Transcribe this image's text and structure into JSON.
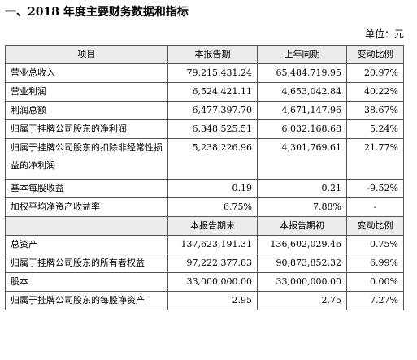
{
  "heading": "一、2018 年度主要财务数据和指标",
  "unit": "单位：元",
  "table1": {
    "headers": [
      "项目",
      "本报告期",
      "上年同期",
      "变动比例"
    ],
    "rows": [
      [
        "营业总收入",
        "79,215,431.24",
        "65,484,719.95",
        "20.97%"
      ],
      [
        "营业利润",
        "6,524,421.11",
        "4,653,042.84",
        "40.22%"
      ],
      [
        "利润总额",
        "6,477,397.70",
        "4,671,147.96",
        "38.67%"
      ],
      [
        "归属于挂牌公司股东的净利润",
        "6,348,525.51",
        "6,032,168.68",
        "5.24%"
      ],
      [
        "归属于挂牌公司股东的扣除非经常性损益的净利润",
        "5,238,226.96",
        "4,301,769.61",
        "21.77%"
      ],
      [
        "基本每股收益",
        "0.19",
        "0.21",
        "-9.52%"
      ],
      [
        "加权平均净资产收益率",
        "6.75%",
        "7.88%",
        "-"
      ]
    ]
  },
  "table2": {
    "headers": [
      "",
      "本报告期末",
      "本报告期初",
      "变动比例"
    ],
    "rows": [
      [
        "总资产",
        "137,623,191.31",
        "136,602,029.46",
        "0.75%"
      ],
      [
        "归属于挂牌公司股东的所有者权益",
        "97,222,377.83",
        "90,873,852.32",
        "6.99%"
      ],
      [
        "股本",
        "33,000,000.00",
        "33,000,000.00",
        "0.00%"
      ],
      [
        "归属于挂牌公司股东的每股净资产",
        "2.95",
        "2.75",
        "7.27%"
      ]
    ]
  }
}
